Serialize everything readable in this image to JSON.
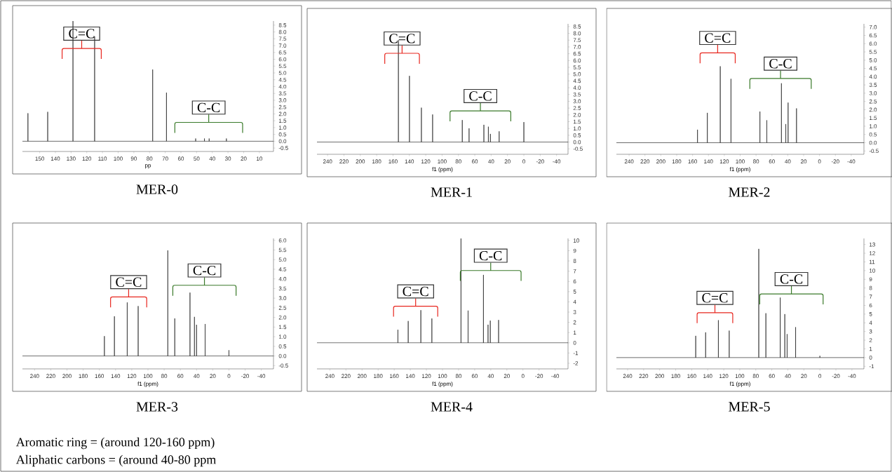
{
  "chart_data": [
    {
      "type": "line",
      "title": "MER-0",
      "xlabel": "pp",
      "color": "#222222",
      "xlim": [
        161,
        1
      ],
      "ylim": [
        -0.75,
        8.8
      ],
      "xticks": [
        150,
        140,
        130,
        120,
        110,
        100,
        90,
        80,
        70,
        60,
        50,
        40,
        30,
        20,
        10
      ],
      "yticks": [
        -0.5,
        {
          "value": 0,
          "label": "0.0"
        },
        0.5,
        {
          "value": 1,
          "label": "1.0"
        },
        1.5,
        {
          "value": 2,
          "label": "2.0"
        },
        2.5,
        {
          "value": 3,
          "label": "3.0"
        },
        3.5,
        {
          "value": 4,
          "label": "4.0"
        },
        4.5,
        {
          "value": 5,
          "label": "5.0"
        },
        5.5,
        {
          "value": 6,
          "label": "6.0"
        },
        6.5,
        {
          "value": 7,
          "label": "7.0"
        },
        7.5,
        {
          "value": 8,
          "label": "8.0"
        },
        8.5
      ],
      "x": [
        161,
        157.5,
        157.5,
        157.5,
        144.9,
        144.9,
        144.9,
        128.8,
        128.8,
        128.8,
        115.0,
        115.0,
        115.0,
        78.0,
        78.0,
        78.0,
        69.2,
        69.2,
        69.2,
        50.6,
        50.6,
        50.6,
        45.0,
        45.0,
        45.0,
        42.0,
        42.0,
        42.0,
        31.0,
        31.0,
        31.0,
        1
      ],
      "values": [
        0,
        0,
        2.05,
        0,
        0,
        2.15,
        0,
        0,
        8.8,
        0,
        0,
        7.67,
        0,
        0,
        5.25,
        0,
        0,
        3.56,
        0,
        0,
        0.2,
        0,
        0,
        0.2,
        0,
        0,
        0.2,
        0,
        0,
        0.2,
        0,
        0
      ],
      "annotations": [
        "C=C",
        "C-C"
      ]
    },
    {
      "type": "line",
      "title": "MER-1",
      "xlabel": "f1 (ppm)",
      "color": "#222222",
      "xlim": [
        253,
        -54
      ],
      "ylim": [
        -0.9,
        8.7
      ],
      "xticks": [
        240,
        220,
        200,
        180,
        160,
        140,
        120,
        100,
        80,
        60,
        40,
        20,
        0,
        -20,
        -40
      ],
      "yticks": [
        -0.5,
        {
          "value": 0,
          "label": "0.0"
        },
        0.5,
        {
          "value": 1,
          "label": "1.0"
        },
        1.5,
        {
          "value": 2,
          "label": "2.0"
        },
        2.5,
        {
          "value": 3,
          "label": "3.0"
        },
        3.5,
        {
          "value": 4,
          "label": "4.0"
        },
        4.5,
        {
          "value": 5,
          "label": "5.0"
        },
        5.5,
        {
          "value": 6,
          "label": "6.0"
        },
        6.5,
        {
          "value": 7,
          "label": "7.0"
        },
        7.5,
        {
          "value": 8,
          "label": "8.0"
        },
        8.5
      ],
      "x": [
        253,
        153.4,
        153.4,
        153.4,
        139.9,
        139.9,
        139.9,
        125.3,
        125.3,
        125.3,
        111.6,
        111.6,
        111.6,
        75.3,
        75.3,
        75.3,
        67.0,
        67.0,
        67.0,
        48.9,
        48.9,
        48.9,
        43.4,
        43.4,
        43.4,
        40.9,
        40.9,
        40.9,
        30.2,
        30.2,
        30.2,
        0,
        0,
        0,
        -54
      ],
      "values": [
        0,
        0,
        7.5,
        0,
        0,
        4.87,
        0,
        0,
        2.53,
        0,
        0,
        2.03,
        0,
        0,
        1.62,
        0,
        0,
        1.01,
        0,
        0,
        1.27,
        0,
        0,
        1.13,
        0,
        0,
        0.6,
        0,
        0,
        0.79,
        0,
        0,
        1.47,
        0,
        0
      ],
      "annotations": [
        "C=C",
        "C-C"
      ]
    },
    {
      "type": "line",
      "title": "MER-2",
      "xlabel": "f1 (ppm)",
      "color": "#222222",
      "xlim": [
        256,
        -56
      ],
      "ylim": [
        -0.7,
        7.2
      ],
      "xticks": [
        240,
        220,
        200,
        180,
        160,
        140,
        120,
        100,
        80,
        60,
        40,
        20,
        0,
        -20,
        -40
      ],
      "yticks": [
        -0.5,
        {
          "value": 0,
          "label": "0.0"
        },
        0.5,
        {
          "value": 1,
          "label": "1.0"
        },
        1.5,
        {
          "value": 2,
          "label": "2.0"
        },
        2.5,
        {
          "value": 3,
          "label": "3.0"
        },
        3.5,
        {
          "value": 4,
          "label": "4.0"
        },
        4.5,
        {
          "value": 5,
          "label": "5.0"
        },
        5.5,
        {
          "value": 6,
          "label": "6.0"
        },
        6.5,
        {
          "value": 7,
          "label": "7.0"
        }
      ],
      "x": [
        256,
        153.8,
        153.8,
        153.8,
        141.4,
        141.4,
        141.4,
        125.1,
        125.1,
        125.1,
        111.6,
        111.6,
        111.6,
        75.1,
        75.1,
        75.1,
        66.4,
        66.4,
        66.4,
        48.0,
        48.0,
        48.0,
        42.5,
        42.5,
        42.5,
        39.6,
        39.6,
        39.6,
        29.0,
        29.0,
        29.0,
        -56
      ],
      "values": [
        0,
        0,
        0.79,
        0,
        0,
        1.81,
        0,
        0,
        4.63,
        0,
        0,
        3.87,
        0,
        0,
        1.89,
        0,
        0,
        1.36,
        0,
        0,
        3.6,
        0,
        0,
        1.13,
        0,
        0,
        2.43,
        0,
        0,
        2.08,
        0,
        0
      ],
      "annotations": [
        "C=C",
        "C-C"
      ]
    },
    {
      "type": "line",
      "title": "MER-3",
      "xlabel": "f1 (ppm)",
      "color": "#222222",
      "xlim": [
        255,
        -55
      ],
      "ylim": [
        -0.67,
        6.1
      ],
      "xticks": [
        240,
        220,
        200,
        180,
        160,
        140,
        120,
        100,
        80,
        60,
        40,
        20,
        0,
        -20,
        -40
      ],
      "yticks": [
        -0.5,
        {
          "value": 0,
          "label": "0.0"
        },
        0.5,
        {
          "value": 1,
          "label": "1.0"
        },
        1.5,
        {
          "value": 2,
          "label": "2.0"
        },
        2.5,
        {
          "value": 3,
          "label": "3.0"
        },
        3.5,
        {
          "value": 4,
          "label": "4.0"
        },
        4.5,
        {
          "value": 5,
          "label": "5.0"
        },
        5.5,
        {
          "value": 6,
          "label": "6.0"
        }
      ],
      "x": [
        255,
        153.8,
        153.8,
        153.8,
        141.4,
        141.4,
        141.4,
        125.6,
        125.6,
        125.6,
        112.1,
        112.1,
        112.1,
        75.5,
        75.5,
        75.5,
        66.9,
        66.9,
        66.9,
        48.1,
        48.1,
        48.1,
        42.6,
        42.6,
        42.6,
        40.0,
        40.0,
        40.0,
        29.4,
        29.4,
        29.4,
        0,
        0,
        0,
        -55
      ],
      "values": [
        0,
        0,
        1.03,
        0,
        0,
        2.06,
        0,
        0,
        2.78,
        0,
        0,
        2.59,
        0,
        0,
        5.48,
        0,
        0,
        1.95,
        0,
        0,
        3.29,
        0,
        0,
        2.03,
        0,
        0,
        1.62,
        0,
        0,
        1.66,
        0,
        0,
        0.3,
        0,
        0
      ],
      "annotations": [
        "C=C",
        "C-C"
      ]
    },
    {
      "type": "line",
      "title": "MER-4",
      "xlabel": "f1 (ppm)",
      "color": "#222222",
      "xlim": [
        256,
        -56
      ],
      "ylim": [
        -2.55,
        10.2
      ],
      "xticks": [
        240,
        220,
        200,
        180,
        160,
        140,
        120,
        100,
        80,
        60,
        40,
        20,
        0,
        -20,
        -40
      ],
      "yticks": [
        -2,
        -1,
        0,
        1,
        2,
        3,
        4,
        5,
        6,
        7,
        8,
        9,
        10
      ],
      "x": [
        256,
        155.4,
        155.4,
        155.4,
        142.6,
        142.6,
        142.6,
        126.9,
        126.9,
        126.9,
        113.2,
        113.2,
        113.2,
        77.0,
        77.0,
        77.0,
        68.2,
        68.2,
        68.2,
        49.1,
        49.1,
        49.1,
        43.4,
        43.4,
        43.4,
        40.6,
        40.6,
        40.6,
        30.3,
        30.3,
        30.3,
        -56
      ],
      "values": [
        0,
        0,
        1.28,
        0,
        0,
        2.13,
        0,
        0,
        3.19,
        0,
        0,
        2.38,
        0,
        0,
        10.2,
        0,
        0,
        3.15,
        0,
        0,
        6.64,
        0,
        0,
        1.77,
        0,
        0,
        2.17,
        0,
        0,
        2.23,
        0,
        0
      ],
      "annotations": [
        "C=C",
        "C-C"
      ]
    },
    {
      "type": "line",
      "title": "MER-5",
      "xlabel": "f1 (ppm)",
      "color": "#222222",
      "xlim": [
        254,
        -55
      ],
      "ylim": [
        -1.3,
        13.7
      ],
      "xticks": [
        240,
        220,
        200,
        180,
        160,
        140,
        120,
        100,
        80,
        60,
        40,
        20,
        0,
        -20,
        -40
      ],
      "yticks": [
        -1,
        0,
        1,
        2,
        3,
        4,
        5,
        6,
        7,
        8,
        9,
        10,
        11,
        12,
        13
      ],
      "x": [
        254,
        155.0,
        155.0,
        155.0,
        142.6,
        142.6,
        142.6,
        126.7,
        126.7,
        126.7,
        113.2,
        113.2,
        113.2,
        76.3,
        76.3,
        76.3,
        67.4,
        67.4,
        67.4,
        49.5,
        49.5,
        49.5,
        43.8,
        43.8,
        43.8,
        40.9,
        40.9,
        40.9,
        30.3,
        30.3,
        30.3,
        0,
        0,
        0,
        -55
      ],
      "values": [
        0,
        0,
        2.5,
        0,
        0,
        2.9,
        0,
        0,
        4.3,
        0,
        0,
        3.1,
        0,
        0,
        12.5,
        0,
        0,
        5.1,
        0,
        0,
        6.9,
        0,
        0,
        5.0,
        0,
        0,
        2.7,
        0,
        0,
        3.5,
        0,
        0,
        0.2,
        0,
        0
      ],
      "annotations": [
        "C=C",
        "C-C"
      ]
    },
    {
      "type": "other",
      "annotations": [
        "Aromatic ring = (around 120-160 ppm)",
        "Aliphatic carbons = (around 40-80 ppm"
      ]
    }
  ]
}
